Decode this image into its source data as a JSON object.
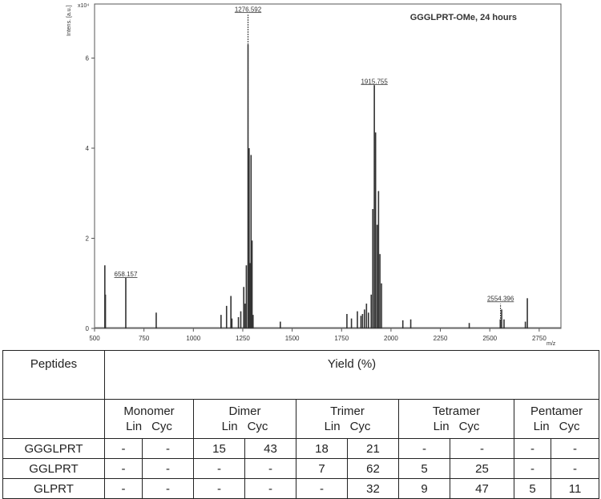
{
  "spectrum": {
    "sample_label": "GGGLPRT-OMe, 24 hours",
    "y_axis_label": "Intens. [a.u.]",
    "y_multiplier": "x10⁴",
    "x_unit": "m/z",
    "x_ticks": [
      "500",
      "750",
      "1000",
      "1250",
      "1500",
      "1750",
      "2000",
      "2250",
      "2500",
      "2750"
    ],
    "y_ticks": [
      "0",
      "2",
      "4",
      "6"
    ]
  },
  "chart_data": {
    "type": "bar",
    "title": "GGGLPRT-OMe, 24 hours",
    "xlabel": "m/z",
    "ylabel": "Intens. [a.u.] x10⁴",
    "xlim": [
      500,
      2860
    ],
    "ylim": [
      0,
      7.2
    ],
    "peaks": {
      "x": [
        552,
        555,
        658,
        812,
        1140,
        1168,
        1190,
        1195,
        1228,
        1240,
        1255,
        1262,
        1268,
        1276.592,
        1282,
        1287,
        1292,
        1297,
        1302,
        1440,
        1777,
        1800,
        1830,
        1848,
        1856,
        1866,
        1876,
        1886,
        1900,
        1908,
        1915.755,
        1922,
        1930,
        1937,
        1944,
        1952,
        2060,
        2100,
        2396,
        2553,
        2560,
        2572,
        2680,
        2690
      ],
      "y": [
        1.4,
        0.75,
        1.12,
        0.35,
        0.3,
        0.5,
        0.72,
        0.22,
        0.25,
        0.38,
        0.92,
        0.55,
        1.4,
        6.3,
        4.0,
        1.45,
        3.85,
        1.95,
        0.3,
        0.15,
        0.32,
        0.22,
        0.38,
        0.28,
        0.32,
        0.42,
        0.55,
        0.35,
        0.75,
        2.65,
        5.4,
        4.35,
        2.3,
        3.05,
        1.65,
        1.0,
        0.18,
        0.2,
        0.12,
        0.2,
        0.42,
        0.2,
        0.15,
        0.67
      ]
    },
    "labeled_peaks": [
      {
        "label": "658.157",
        "x": 658.157,
        "y": 1.12
      },
      {
        "label": "1276.592",
        "x": 1276.592,
        "y": 7.0
      },
      {
        "label": "1915.755",
        "x": 1915.755,
        "y": 5.4
      },
      {
        "label": "2554.396",
        "x": 2554.396,
        "y": 0.58
      }
    ]
  },
  "table": {
    "peptides_header": "Peptides",
    "yield_header": "Yield (%)",
    "groups": [
      {
        "name": "Monomer",
        "sub": [
          "Lin",
          "Cyc"
        ]
      },
      {
        "name": "Dimer",
        "sub": [
          "Lin",
          "Cyc"
        ]
      },
      {
        "name": "Trimer",
        "sub": [
          "Lin",
          "Cyc"
        ]
      },
      {
        "name": "Tetramer",
        "sub": [
          "Lin",
          "Cyc"
        ]
      },
      {
        "name": "Pentamer",
        "sub": [
          "Lin",
          "Cyc"
        ]
      }
    ],
    "rows": [
      {
        "name": "GGGLPRT",
        "values": [
          "-",
          "-",
          "15",
          "43",
          "18",
          "21",
          "-",
          "-",
          "-",
          "-"
        ]
      },
      {
        "name": "GGLPRT",
        "values": [
          "-",
          "-",
          "-",
          "-",
          "7",
          "62",
          "5",
          "25",
          "-",
          "-"
        ]
      },
      {
        "name": "GLPRT",
        "values": [
          "-",
          "-",
          "-",
          "-",
          "-",
          "32",
          "9",
          "47",
          "5",
          "11"
        ]
      }
    ]
  }
}
